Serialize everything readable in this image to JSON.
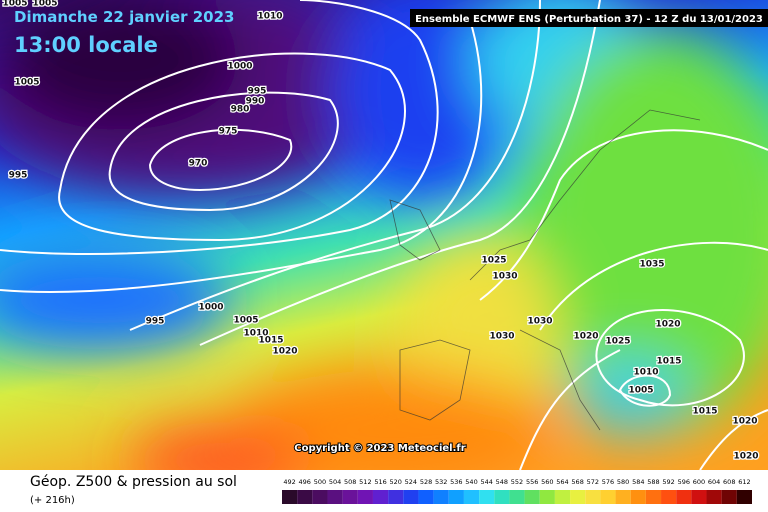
{
  "header": {
    "date": "Dimanche 22 janvier 2023",
    "time": "13:00 locale",
    "run": "Ensemble ECMWF ENS  (Perturbation 37)  -  12 Z du 13/01/2023"
  },
  "map": {
    "copyright": "Copyright © 2023 Meteociel.fr",
    "isobar_labels": [
      "1005",
      "1005",
      "1010",
      "1000",
      "995",
      "990",
      "980",
      "975",
      "970",
      "1005",
      "995",
      "1000",
      "995",
      "1005",
      "1010",
      "1015",
      "1020",
      "1025",
      "1030",
      "1030",
      "1030",
      "1035",
      "1020",
      "1020",
      "1025",
      "1015",
      "1010",
      "1005",
      "1015",
      "1020",
      "1020"
    ]
  },
  "footer": {
    "title": "Géop. Z500 & pression au sol",
    "lead": "(+ 216h)",
    "scale": [
      492,
      496,
      500,
      504,
      508,
      512,
      516,
      520,
      524,
      528,
      532,
      536,
      540,
      544,
      548,
      552,
      556,
      560,
      564,
      568,
      572,
      576,
      580,
      584,
      588,
      592,
      596,
      600,
      604,
      608,
      612
    ]
  }
}
